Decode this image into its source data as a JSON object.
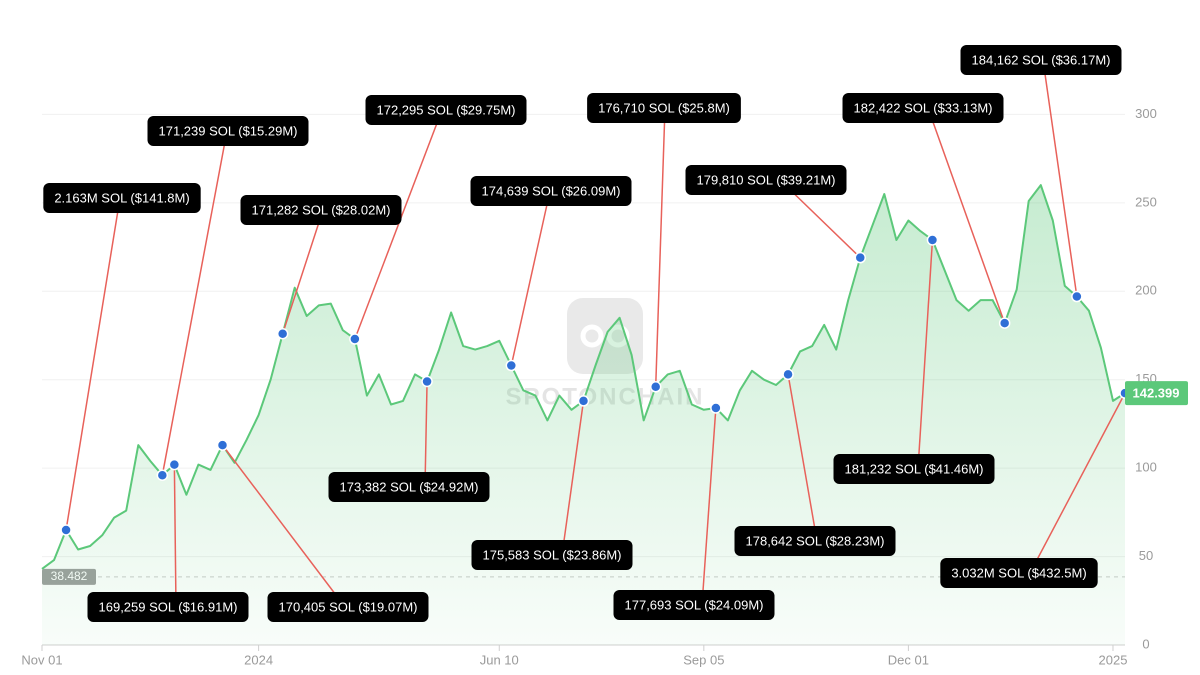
{
  "chart_data": {
    "type": "line",
    "watermark": "SPOTONCHAIN",
    "color": "#5cc87a",
    "categories": [
      "Nov 01",
      null,
      null,
      null,
      null,
      null,
      null,
      null,
      null,
      null,
      null,
      null,
      null,
      null,
      null,
      null,
      null,
      null,
      "2024",
      null,
      null,
      null,
      null,
      null,
      null,
      null,
      null,
      null,
      null,
      null,
      null,
      null,
      null,
      null,
      null,
      null,
      null,
      null,
      "Jun 10",
      null,
      null,
      null,
      null,
      null,
      null,
      null,
      null,
      null,
      null,
      null,
      null,
      null,
      null,
      null,
      null,
      "Sep 05",
      null,
      null,
      null,
      null,
      null,
      null,
      null,
      null,
      null,
      null,
      null,
      null,
      null,
      null,
      null,
      null,
      "Dec 01",
      null,
      null,
      null,
      null,
      null,
      null,
      null,
      null,
      null,
      null,
      null,
      null,
      null,
      null,
      null,
      null,
      "2025",
      null
    ],
    "values": [
      43,
      48,
      65,
      54,
      56,
      62,
      72,
      76,
      113,
      104,
      96,
      102,
      85,
      102,
      99,
      113,
      103,
      116,
      130,
      150,
      176,
      202,
      186,
      192,
      193,
      178,
      173,
      141,
      153,
      136,
      138,
      153,
      149,
      167,
      188,
      169,
      167,
      169,
      172,
      158,
      144,
      141,
      127,
      141,
      133,
      138,
      158,
      177,
      185,
      164,
      127,
      146,
      153,
      155,
      136,
      133,
      134,
      127,
      144,
      155,
      150,
      147,
      153,
      166,
      169,
      181,
      167,
      195,
      219,
      237,
      255,
      229,
      240,
      234,
      229,
      212,
      195,
      189,
      195,
      195,
      182,
      201,
      251,
      260,
      240,
      203,
      197,
      189,
      168,
      138,
      142.399
    ],
    "min_line": 38.482,
    "ylim": [
      0,
      320
    ],
    "yticks": [
      0,
      50,
      100,
      150,
      200,
      250,
      300
    ],
    "grid": true,
    "annotations": [
      "2.163M SOL ($141.8M)",
      "171,239 SOL ($15.29M)",
      "169,259 SOL ($16.91M)",
      "170,405 SOL ($19.07M)",
      "171,282 SOL ($28.02M)",
      "172,295 SOL ($29.75M)",
      "173,382 SOL ($24.92M)",
      "174,639 SOL ($26.09M)",
      "175,583 SOL ($23.86M)",
      "176,710 SOL ($25.8M)",
      "177,693 SOL ($24.09M)",
      "178,642 SOL ($28.23M)",
      "179,810 SOL ($39.21M)",
      "181,232 SOL ($41.46M)",
      "182,422 SOL ($33.13M)",
      "184,162 SOL ($36.17M)",
      "3.032M SOL ($432.5M)"
    ]
  }
}
